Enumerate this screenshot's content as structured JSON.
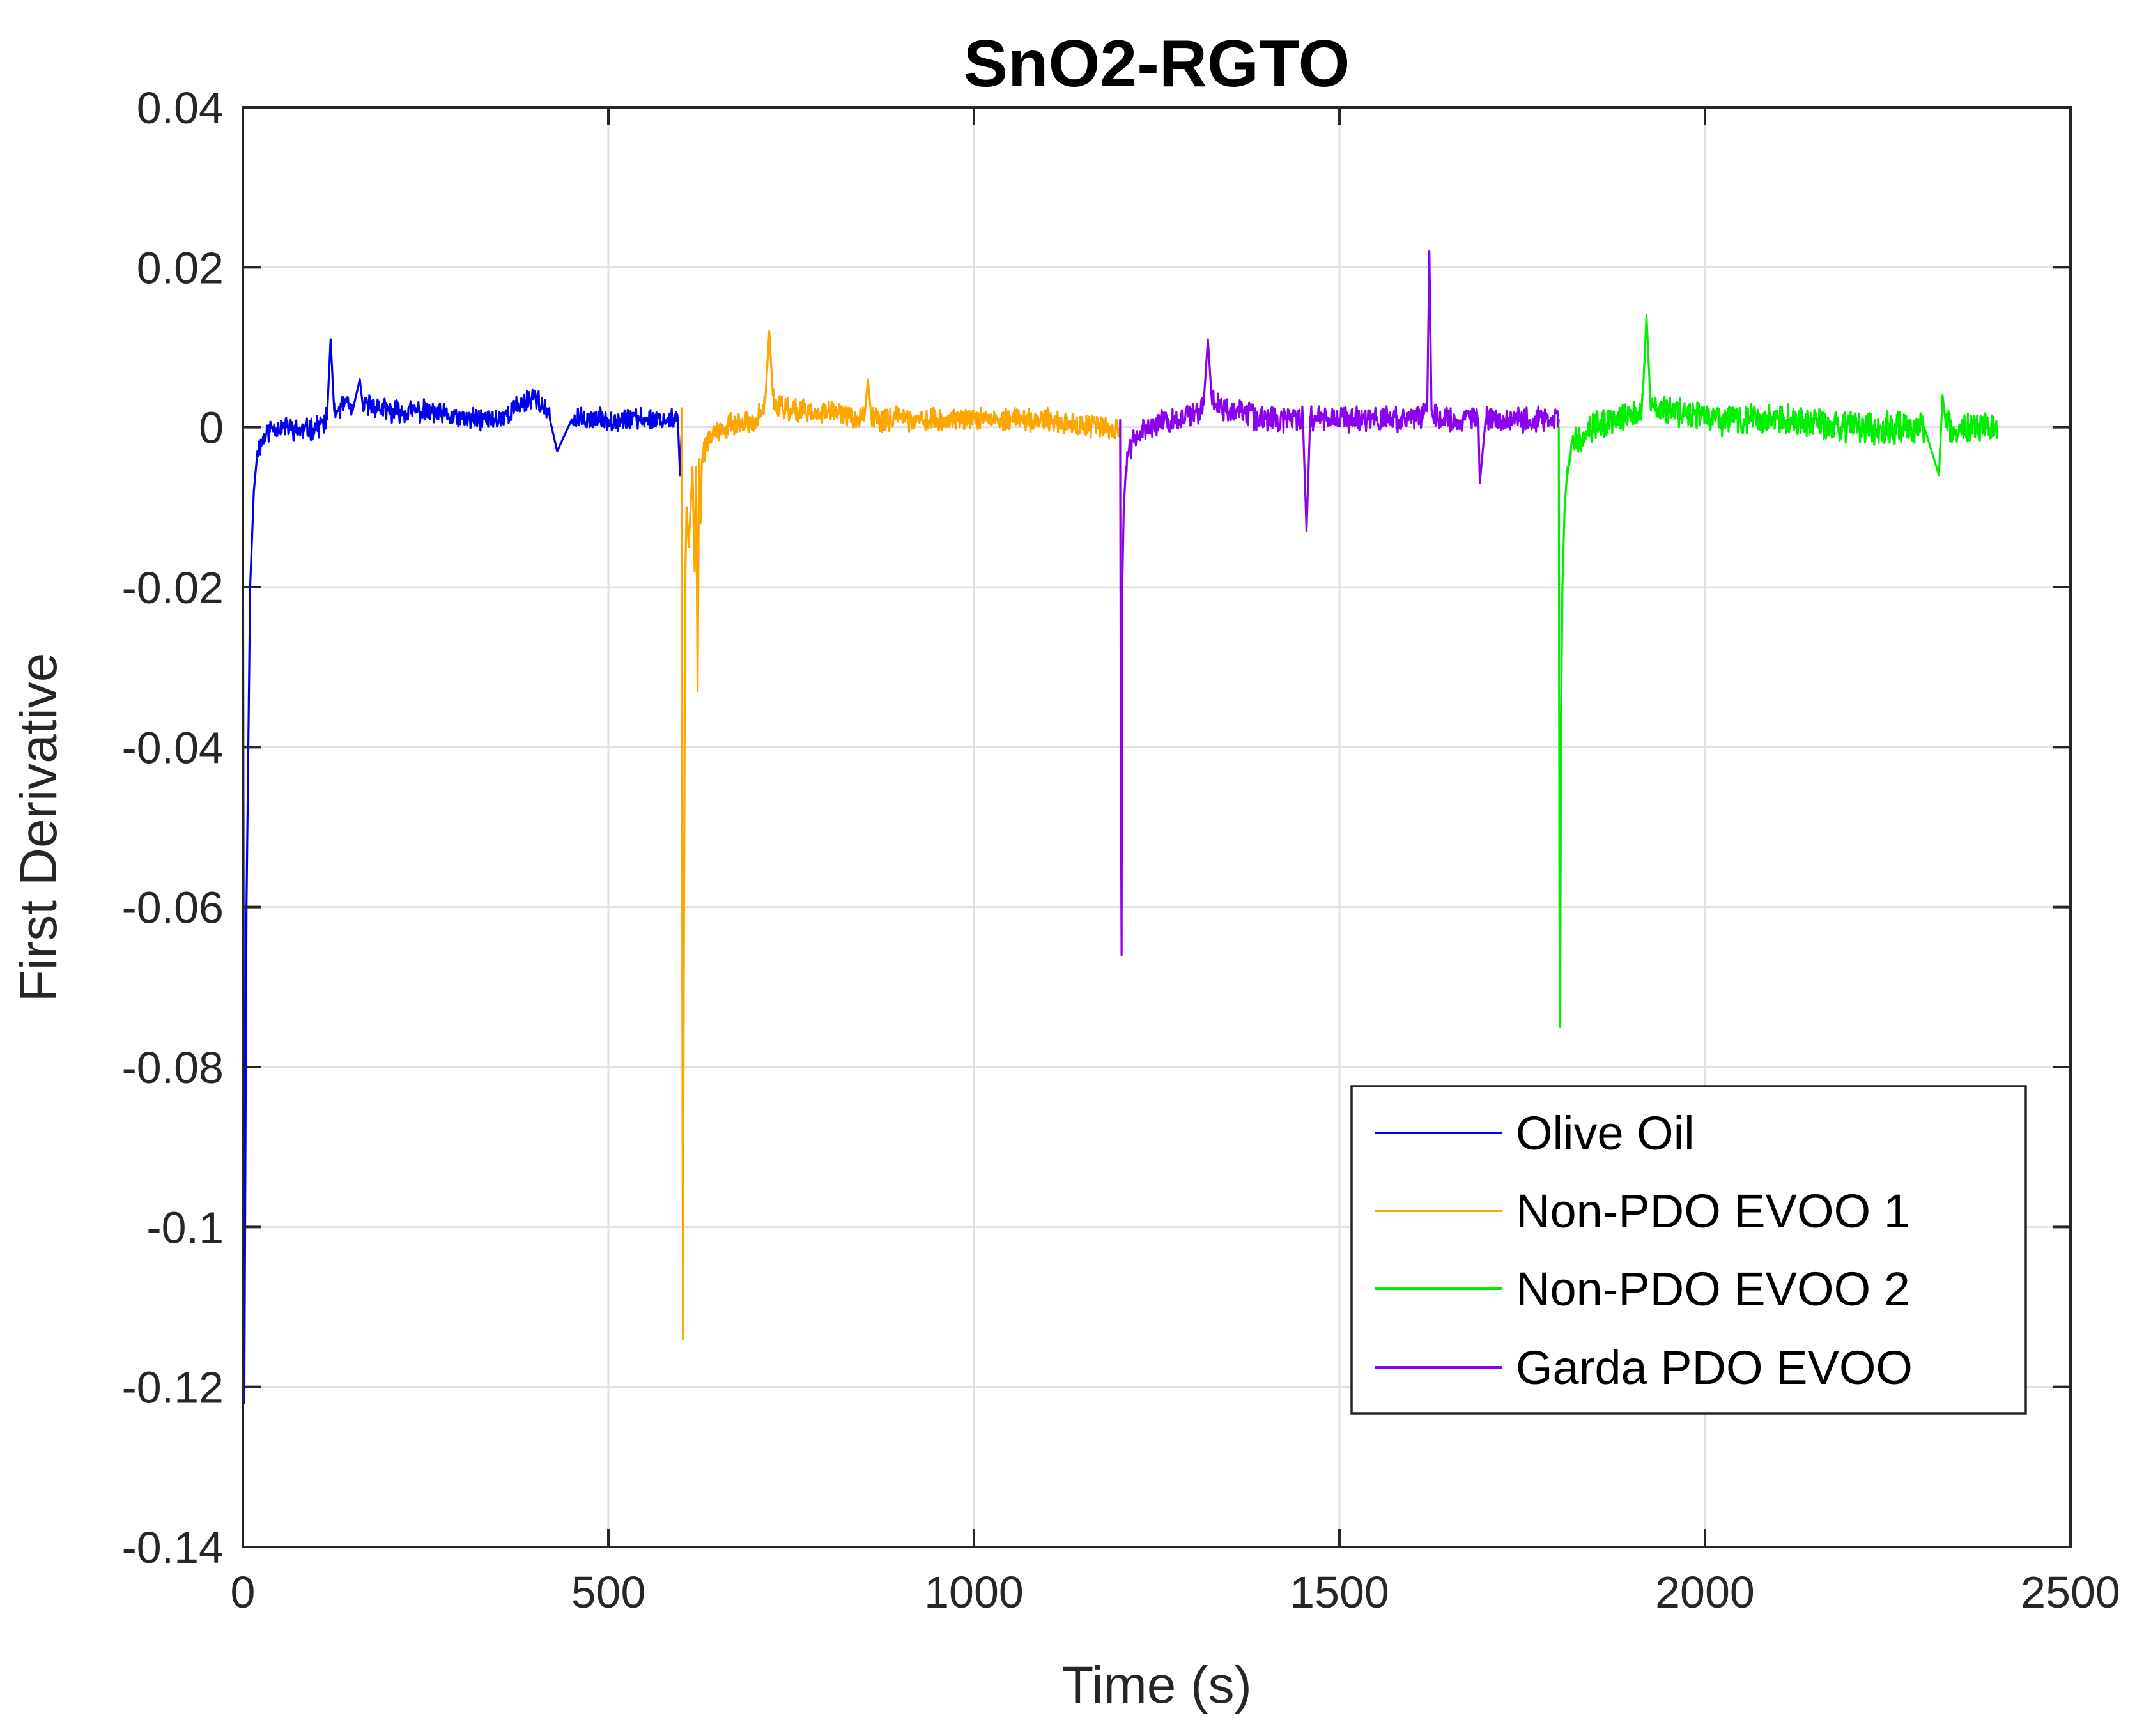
{
  "chart_data": {
    "type": "line",
    "title": "SnO2-RGTO",
    "xlabel": "Time (s)",
    "ylabel": "First Derivative",
    "xlim": [
      0,
      2500
    ],
    "ylim": [
      -0.14,
      0.04
    ],
    "x_ticks": [
      {
        "value": 0,
        "label": "0"
      },
      {
        "value": 500,
        "label": "500"
      },
      {
        "value": 1000,
        "label": "1000"
      },
      {
        "value": 1500,
        "label": "1500"
      },
      {
        "value": 2000,
        "label": "2000"
      },
      {
        "value": 2500,
        "label": "2500"
      }
    ],
    "y_ticks": [
      {
        "value": 0.04,
        "label": "0.04"
      },
      {
        "value": 0.02,
        "label": "0.02"
      },
      {
        "value": 0,
        "label": "0"
      },
      {
        "value": -0.02,
        "label": "-0.02"
      },
      {
        "value": -0.04,
        "label": "-0.04"
      },
      {
        "value": -0.06,
        "label": "-0.06"
      },
      {
        "value": -0.08,
        "label": "-0.08"
      },
      {
        "value": -0.1,
        "label": "-0.1"
      },
      {
        "value": -0.12,
        "label": "-0.12"
      },
      {
        "value": -0.14,
        "label": "-0.14"
      }
    ],
    "grid": true,
    "legend_position": "bottom-right",
    "legend_order": [
      "Olive Oil",
      "Non-PDO EVOO 1",
      "Non-PDO EVOO 2",
      "Garda PDO EVOO"
    ],
    "series": [
      {
        "name": "Olive Oil",
        "color": "#0000ee",
        "x": [
          0,
          2,
          5,
          10,
          15,
          20,
          30,
          40,
          60,
          80,
          100,
          110,
          115,
          120,
          125,
          130,
          140,
          150,
          160,
          165,
          170,
          200,
          250,
          300,
          350,
          400,
          420,
          430,
          450,
          500,
          550,
          580,
          595,
          598,
          600
        ],
        "values": [
          0,
          -0.122,
          -0.06,
          -0.02,
          -0.008,
          -0.003,
          -0.001,
          0,
          0,
          -0.0005,
          0,
          0.0005,
          0.001,
          0.011,
          0.002,
          0.002,
          0.003,
          0.002,
          0.006,
          0.002,
          0.003,
          0.002,
          0.002,
          0.001,
          0.001,
          0.004,
          0.001,
          -0.003,
          0.001,
          0.001,
          0.001,
          0.001,
          0.001,
          -0.006,
          -0.001
        ],
        "noise": 0.0012,
        "seed": 11
      },
      {
        "name": "Non-PDO EVOO 1",
        "color": "#ffa500",
        "x": [
          600,
          601,
          602,
          603,
          605,
          607,
          610,
          615,
          618,
          620,
          622,
          624,
          626,
          628,
          630,
          640,
          660,
          700,
          710,
          715,
          720,
          725,
          730,
          750,
          800,
          850,
          855,
          860,
          900,
          1000,
          1100,
          1150,
          1190,
          1200
        ],
        "values": [
          0.0025,
          -0.055,
          -0.114,
          -0.074,
          -0.02,
          -0.01,
          -0.015,
          -0.005,
          -0.018,
          -0.005,
          -0.033,
          -0.004,
          -0.012,
          -0.004,
          -0.003,
          -0.001,
          0,
          0.001,
          0.002,
          0.004,
          0.012,
          0.004,
          0.003,
          0.002,
          0.002,
          0.001,
          0.006,
          0.001,
          0.001,
          0.001,
          0.001,
          0,
          0,
          0
        ],
        "noise": 0.0013,
        "seed": 22
      },
      {
        "name": "Non-PDO EVOO 2",
        "color": "#00ee00",
        "x": [
          1800,
          1801,
          1802,
          1803,
          1805,
          1808,
          1812,
          1820,
          1840,
          1880,
          1910,
          1915,
          1920,
          1925,
          1930,
          1950,
          2000,
          2100,
          2200,
          2300,
          2320,
          2325,
          2330,
          2340,
          2400
        ],
        "values": [
          0,
          -0.06,
          -0.075,
          -0.04,
          -0.02,
          -0.01,
          -0.005,
          -0.002,
          0,
          0.001,
          0.002,
          0.004,
          0.014,
          0.004,
          0.003,
          0.002,
          0.001,
          0.001,
          0,
          0,
          -0.006,
          0.004,
          0,
          0,
          0
        ],
        "noise": 0.0017,
        "seed": 33
      },
      {
        "name": "Garda PDO EVOO",
        "color": "#8b00ee",
        "x": [
          1200,
          1201,
          1202,
          1203,
          1205,
          1208,
          1212,
          1220,
          1240,
          1280,
          1310,
          1315,
          1320,
          1325,
          1330,
          1350,
          1400,
          1450,
          1455,
          1460,
          1500,
          1550,
          1600,
          1620,
          1623,
          1626,
          1640,
          1690,
          1692,
          1700,
          1750,
          1800
        ],
        "values": [
          0.001,
          -0.04,
          -0.066,
          -0.02,
          -0.01,
          -0.005,
          -0.003,
          -0.001,
          0,
          0.001,
          0.002,
          0.004,
          0.011,
          0.004,
          0.003,
          0.002,
          0.001,
          0.001,
          -0.013,
          0.001,
          0.001,
          0.001,
          0.001,
          0.002,
          0.022,
          0.002,
          0.001,
          0.001,
          -0.007,
          0.001,
          0.001,
          0.001
        ],
        "noise": 0.0014,
        "seed": 44
      }
    ]
  }
}
